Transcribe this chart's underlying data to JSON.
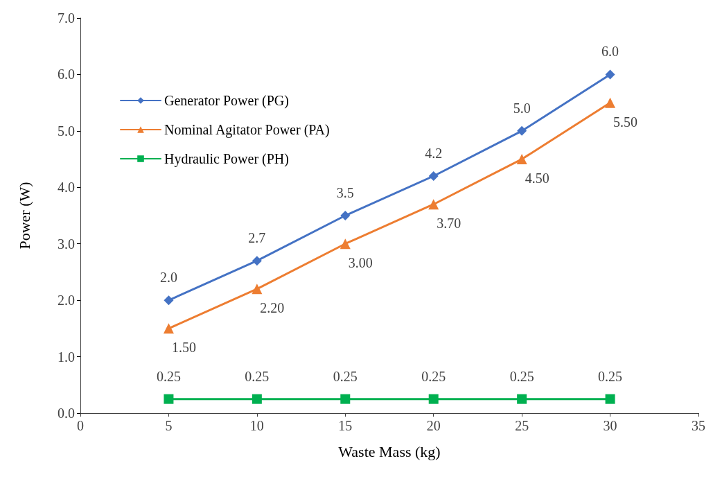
{
  "chart_data": {
    "type": "line",
    "xlabel": "Waste Mass (kg)",
    "ylabel": "Power (W)",
    "x": [
      5,
      10,
      15,
      20,
      25,
      30
    ],
    "xlim": [
      0,
      35
    ],
    "xticks": [
      0,
      5,
      10,
      15,
      20,
      25,
      30,
      35
    ],
    "ylim": [
      0,
      7
    ],
    "yticks": [
      {
        "value": 0,
        "label": "0.0"
      },
      {
        "value": 1,
        "label": "1.0"
      },
      {
        "value": 2,
        "label": "2.0"
      },
      {
        "value": 3,
        "label": "3.0"
      },
      {
        "value": 4,
        "label": "4.0"
      },
      {
        "value": 5,
        "label": "5.0"
      },
      {
        "value": 6,
        "label": "6.0"
      },
      {
        "value": 7,
        "label": "7.0"
      }
    ],
    "grid": false,
    "legend": "top left",
    "line_style": "solid",
    "series": [
      {
        "name": "Generator Power (PG)",
        "color": "#4472c4",
        "marker": "diamond",
        "values": [
          2.0,
          2.7,
          3.5,
          4.2,
          5.0,
          6.0
        ],
        "value_labels": [
          "2.0",
          "2.7",
          "3.5",
          "4.2",
          "5.0",
          "6.0"
        ]
      },
      {
        "name": "Nominal Agitator Power (PA)",
        "color": "#ed7d31",
        "marker": "triangle",
        "values": [
          1.5,
          2.2,
          3.0,
          3.7,
          4.5,
          5.5
        ],
        "value_labels": [
          "1.50",
          "2.20",
          "3.00",
          "3.70",
          "4.50",
          "5.50"
        ]
      },
      {
        "name": "Hydraulic Power (PH)",
        "color": "#00b050",
        "marker": "square",
        "values": [
          0.25,
          0.25,
          0.25,
          0.25,
          0.25,
          0.25
        ],
        "value_labels": [
          "0.25",
          "0.25",
          "0.25",
          "0.25",
          "0.25",
          "0.25"
        ]
      }
    ]
  }
}
